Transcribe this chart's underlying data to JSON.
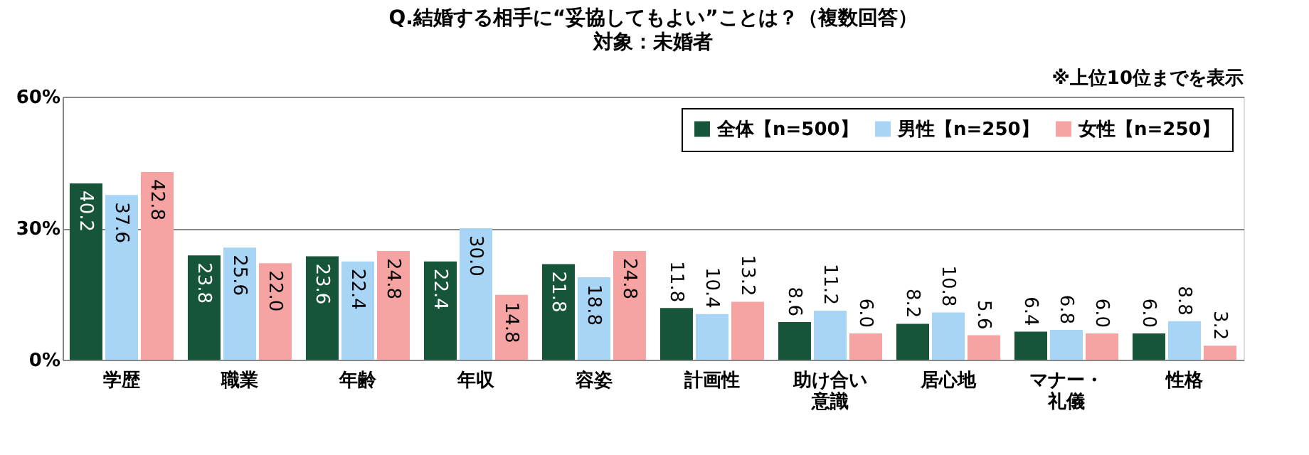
{
  "chart_data": {
    "type": "bar",
    "title": "Q.結婚する相手に“妥協してもよい”ことは？（複数回答）",
    "subtitle": "対象：未婚者",
    "annotations": [
      "※上位10位までを表示"
    ],
    "categories": [
      "学歴",
      "職業",
      "年齢",
      "年収",
      "容姿",
      "計画性",
      "助け合い意識",
      "居心地",
      "マナー・礼儀",
      "性格"
    ],
    "series": [
      {
        "name": "全体【n=500】",
        "color": "#17553a",
        "values": [
          40.2,
          23.8,
          23.6,
          22.4,
          21.8,
          11.8,
          8.6,
          8.2,
          6.4,
          6.0
        ],
        "value_labels": [
          "40.2",
          "23.8",
          "23.6",
          "22.4",
          "21.8",
          "11.8",
          "8.6",
          "8.2",
          "6.4",
          "6.0"
        ]
      },
      {
        "name": "男性【n=250】",
        "color": "#a8d4f6",
        "values": [
          37.6,
          25.6,
          22.4,
          30.0,
          18.8,
          10.4,
          11.2,
          10.8,
          6.8,
          8.8
        ],
        "value_labels": [
          "37.6",
          "25.6",
          "22.4",
          "30.0",
          "18.8",
          "10.4",
          "11.2",
          "10.8",
          "6.8",
          "8.8"
        ]
      },
      {
        "name": "女性【n=250】",
        "color": "#f5a3a3",
        "values": [
          42.8,
          22.0,
          24.8,
          14.8,
          24.8,
          13.2,
          6.0,
          5.6,
          6.0,
          3.2
        ],
        "value_labels": [
          "42.8",
          "22.0",
          "24.8",
          "14.8",
          "24.8",
          "13.2",
          "6.0",
          "5.6",
          "6.0",
          "3.2"
        ]
      }
    ],
    "ylim": [
      0,
      60
    ],
    "yticks": [
      {
        "value": 0,
        "label": "0%"
      },
      {
        "value": 30,
        "label": "30%"
      },
      {
        "value": 60,
        "label": "60%"
      }
    ],
    "grid": "y",
    "legend": "top right"
  }
}
